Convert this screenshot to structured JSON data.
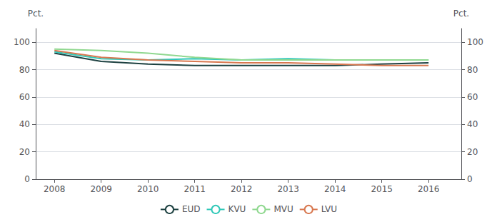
{
  "chart_data": {
    "type": "line",
    "x": [
      2008,
      2009,
      2010,
      2011,
      2012,
      2013,
      2014,
      2015,
      2016
    ],
    "series": [
      {
        "name": "EUD",
        "color": "#1c4040",
        "values": [
          92,
          86,
          84,
          83,
          83,
          83,
          83,
          84,
          85
        ]
      },
      {
        "name": "KVU",
        "color": "#30c8b8",
        "values": [
          93,
          88,
          87,
          88,
          87,
          88,
          87,
          87,
          87
        ]
      },
      {
        "name": "MVU",
        "color": "#90d890",
        "values": [
          95,
          94,
          92,
          89,
          87,
          87,
          87,
          87,
          87
        ]
      },
      {
        "name": "LVU",
        "color": "#d87850",
        "values": [
          94,
          89,
          87,
          86,
          85,
          85,
          84,
          83,
          83
        ]
      }
    ],
    "xlim": [
      2007.6,
      2016.7
    ],
    "xticks": [
      2008,
      2009,
      2010,
      2011,
      2012,
      2013,
      2014,
      2015,
      2016
    ],
    "ylim": [
      0,
      110
    ],
    "yticks": [
      0,
      20,
      40,
      60,
      80,
      100
    ],
    "y2lim": [
      0,
      110
    ],
    "y2ticks": [
      0,
      20,
      40,
      60,
      80,
      100
    ],
    "ylabel": "Pct.",
    "y2label": "Pct.",
    "grid": true,
    "legend": "bottom"
  }
}
